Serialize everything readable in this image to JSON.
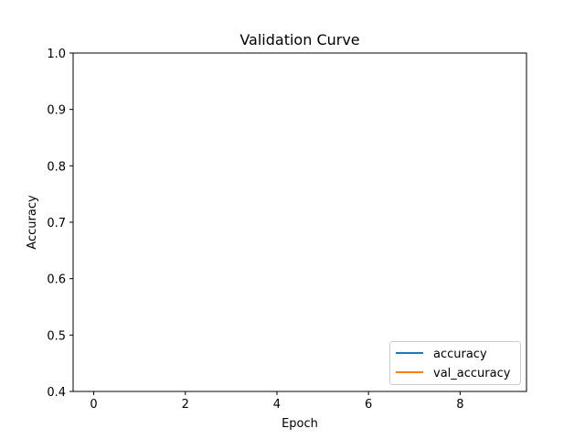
{
  "chart_data": {
    "type": "line",
    "title": "Validation Curve",
    "xlabel": "Epoch",
    "ylabel": "Accuracy",
    "xlim": [
      -0.45,
      9.45
    ],
    "ylim": [
      0.4,
      1.0
    ],
    "xticks": [
      "0",
      "2",
      "4",
      "6",
      "8"
    ],
    "yticks": [
      "0.4",
      "0.5",
      "0.6",
      "0.7",
      "0.8",
      "0.9",
      "1.0"
    ],
    "grid": false,
    "legend_position": "lower right",
    "series": [
      {
        "name": "accuracy",
        "color": "#1f77b4",
        "x": [],
        "y": []
      },
      {
        "name": "val_accuracy",
        "color": "#ff7f0e",
        "x": [],
        "y": []
      }
    ]
  }
}
